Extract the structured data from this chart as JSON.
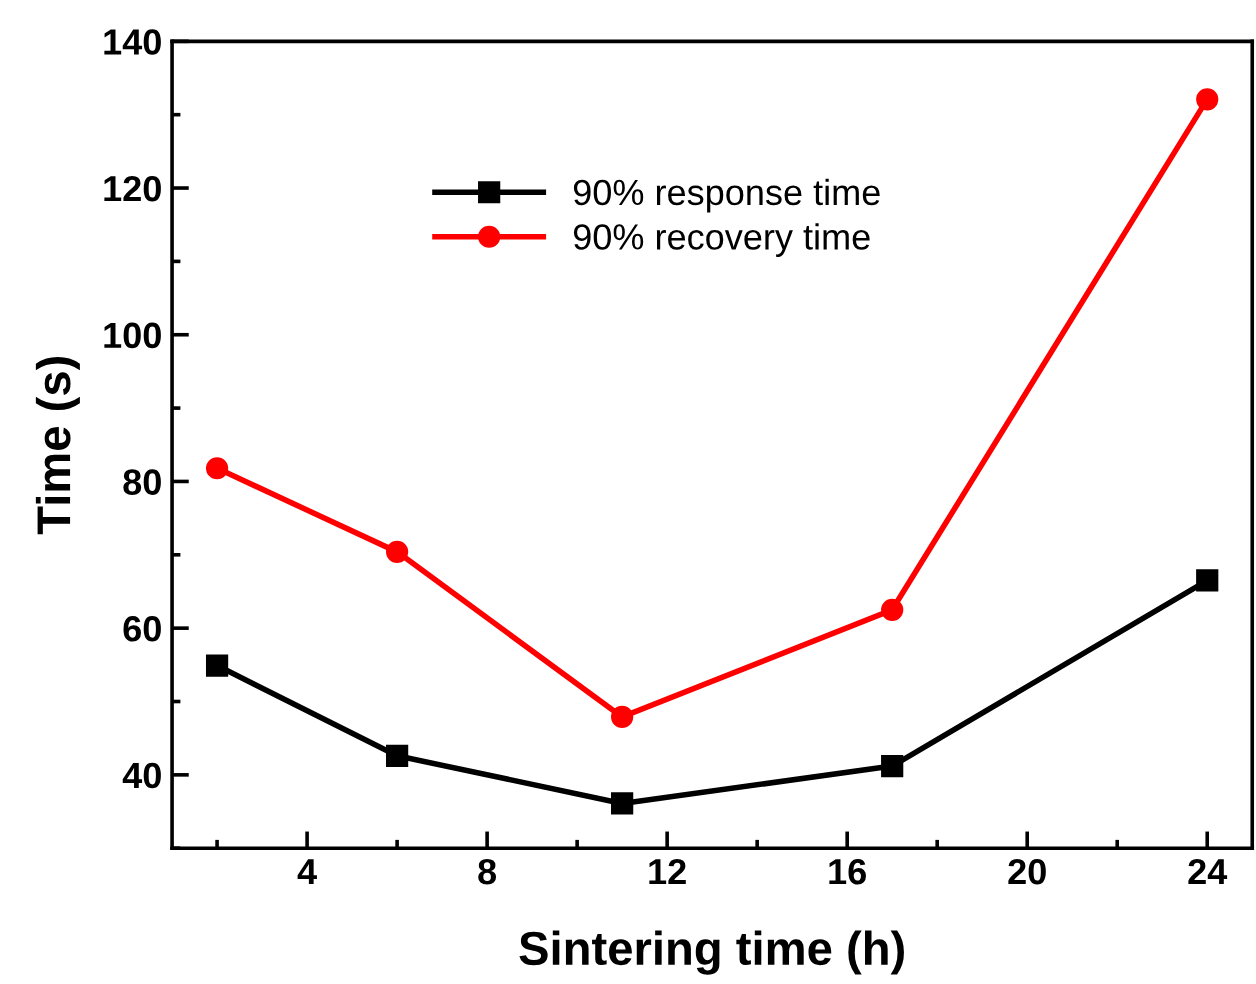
{
  "chart_data": {
    "type": "line",
    "xlabel": "Sintering time (h)",
    "ylabel": "Time (s)",
    "x": [
      2,
      6,
      11,
      17,
      24
    ],
    "series": [
      {
        "name": "90% response time",
        "color": "#000000",
        "marker": "square",
        "values": [
          54.9,
          42.6,
          36.1,
          41.2,
          66.5
        ]
      },
      {
        "name": "90% recovery time",
        "color": "#ff0000",
        "marker": "circle",
        "values": [
          81.8,
          70.4,
          47.9,
          62.5,
          132.1
        ]
      }
    ],
    "xlim": [
      1,
      25
    ],
    "xticks": [
      4,
      8,
      12,
      16,
      20,
      24
    ],
    "ylim": [
      30,
      140
    ],
    "yticks": [
      40,
      60,
      80,
      100,
      120,
      140
    ],
    "legend": "top center",
    "grid": false,
    "line_style": "solid"
  }
}
